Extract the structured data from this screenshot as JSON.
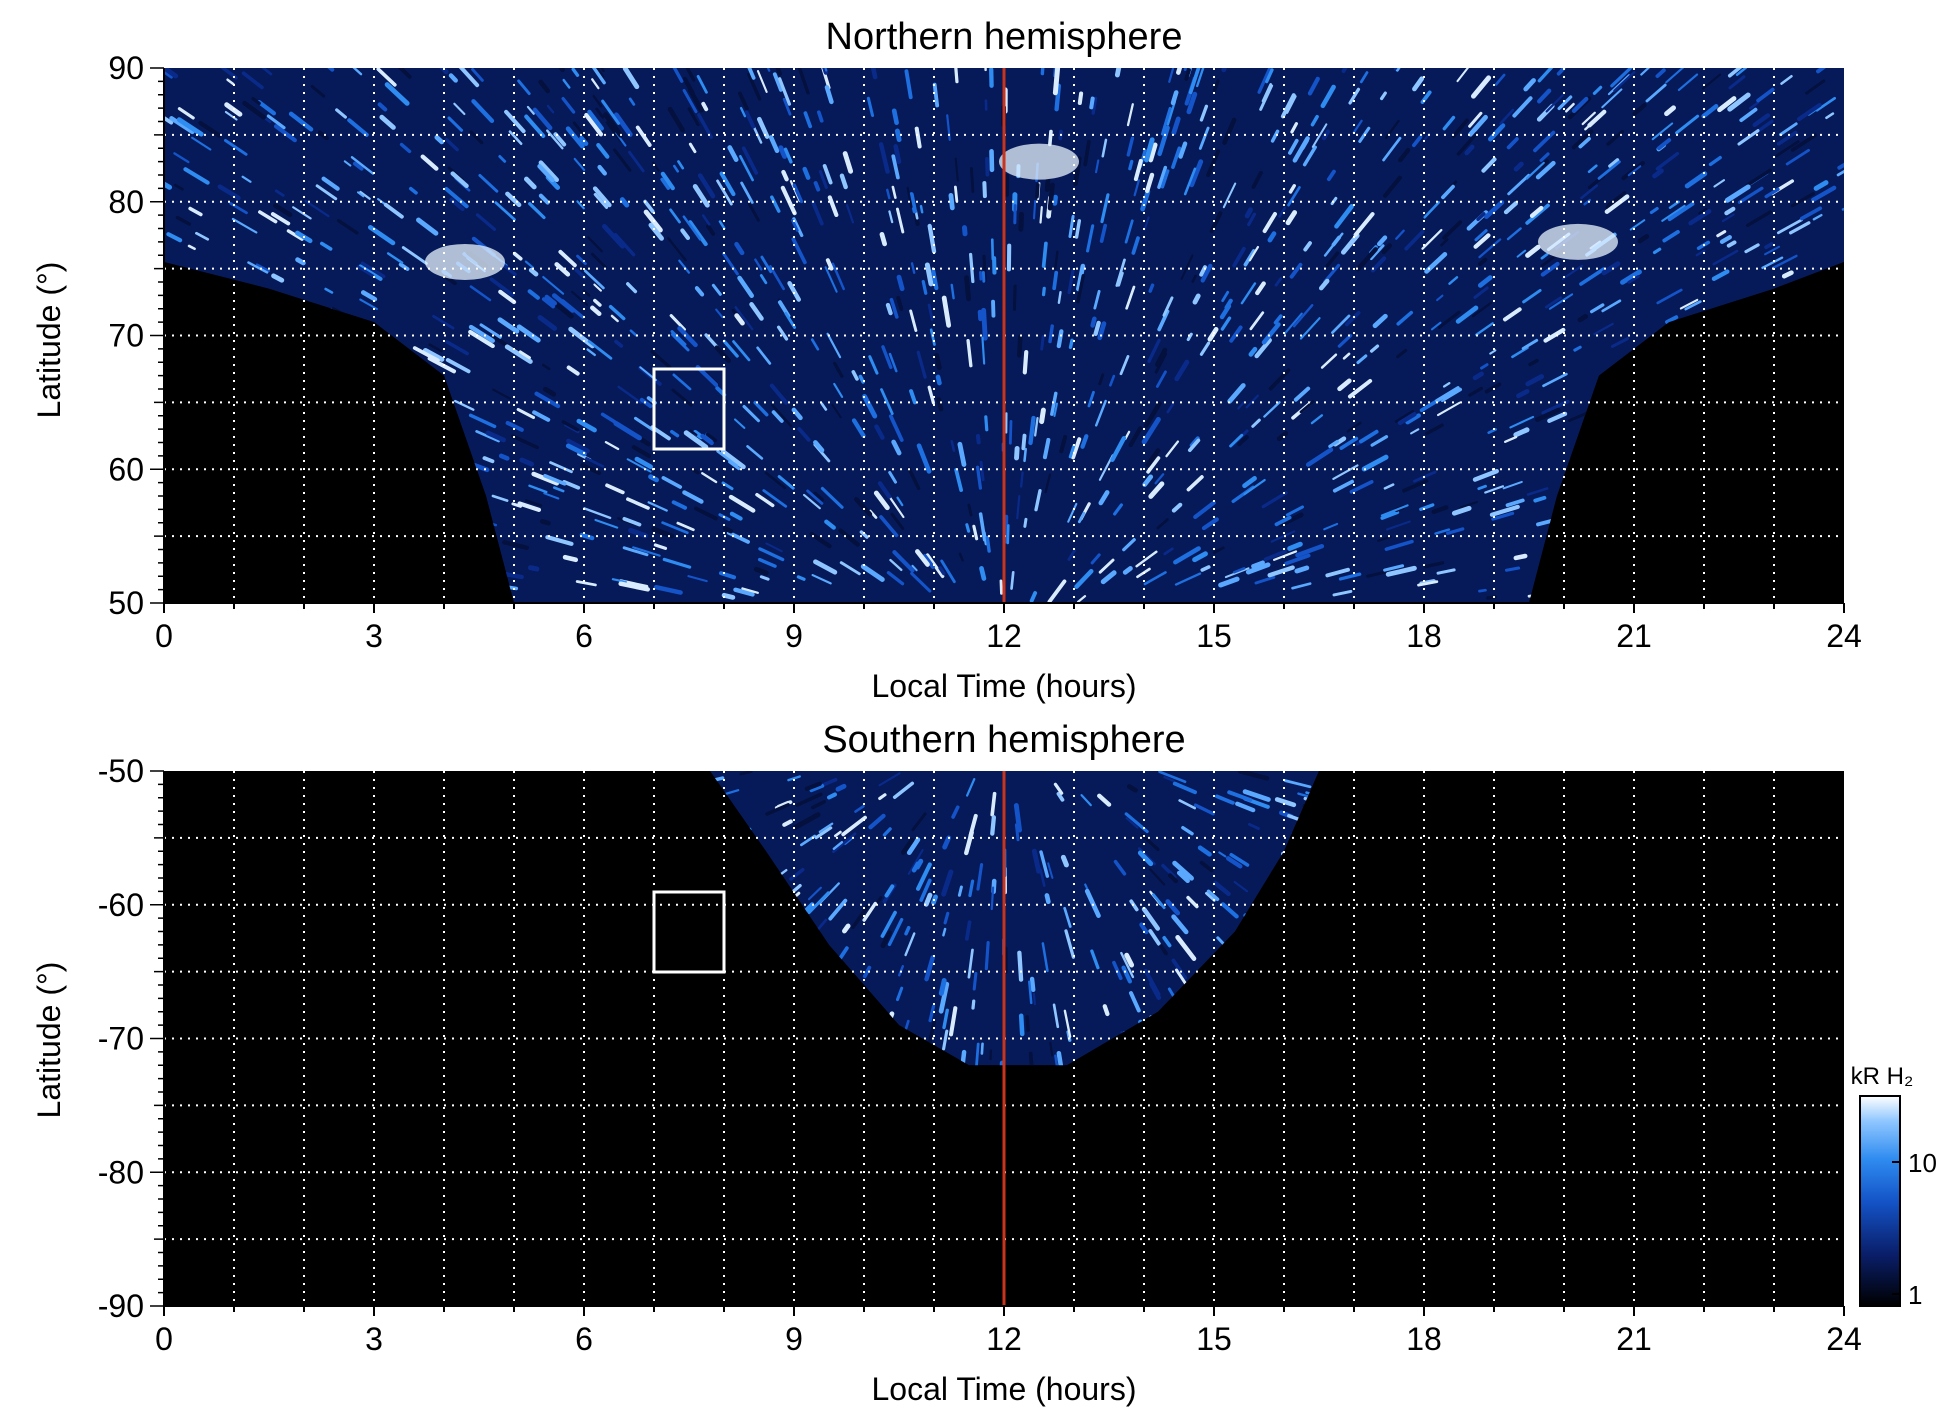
{
  "chart_data": [
    {
      "type": "heatmap",
      "title": "Northern hemisphere",
      "xlabel": "Local Time (hours)",
      "ylabel": "Latitude (°)",
      "xlim": [
        0,
        24
      ],
      "ylim": [
        50,
        90
      ],
      "xticks": [
        "0",
        "3",
        "6",
        "9",
        "12",
        "15",
        "18",
        "21",
        "24"
      ],
      "yticks": [
        "50",
        "60",
        "70",
        "80",
        "90"
      ],
      "grid": true,
      "noon_line_x": 12,
      "noon_line_color": "#c8341c",
      "box": {
        "x": [
          7,
          8
        ],
        "y": [
          61.5,
          67.5
        ]
      },
      "coverage": {
        "description_points_lt_lat": [
          [
            0,
            75.5
          ],
          [
            1.5,
            73.5
          ],
          [
            3,
            71
          ],
          [
            4,
            67
          ],
          [
            4.6,
            58
          ],
          [
            5,
            50
          ],
          [
            19.5,
            50
          ],
          [
            19.9,
            58
          ],
          [
            20.5,
            67
          ],
          [
            21.5,
            71
          ],
          [
            23,
            73.5
          ],
          [
            24,
            75.5
          ]
        ]
      },
      "features": [
        {
          "lt": 4.3,
          "lat": 75.5,
          "intensity": "bright"
        },
        {
          "lt": 12.5,
          "lat": 83,
          "intensity": "bright"
        },
        {
          "lt": 20.2,
          "lat": 77,
          "intensity": "bright"
        }
      ]
    },
    {
      "type": "heatmap",
      "title": "Southern hemisphere",
      "xlabel": "Local Time (hours)",
      "ylabel": "Latitude (°)",
      "xlim": [
        0,
        24
      ],
      "ylim": [
        -90,
        -50
      ],
      "xticks": [
        "0",
        "3",
        "6",
        "9",
        "12",
        "15",
        "18",
        "21",
        "24"
      ],
      "yticks": [
        "-90",
        "-80",
        "-70",
        "-60",
        "-50"
      ],
      "grid": true,
      "noon_line_x": 12,
      "noon_line_color": "#c8341c",
      "box": {
        "x": [
          7,
          8
        ],
        "y": [
          -65,
          -59
        ]
      },
      "coverage": {
        "description_points_lt_lat": [
          [
            7.8,
            -50
          ],
          [
            8.6,
            -56
          ],
          [
            9.5,
            -63
          ],
          [
            10.5,
            -69
          ],
          [
            11.5,
            -72
          ],
          [
            12.9,
            -72
          ],
          [
            14.2,
            -68
          ],
          [
            15.3,
            -62
          ],
          [
            16.0,
            -56
          ],
          [
            16.5,
            -50
          ]
        ]
      }
    }
  ],
  "colorbar": {
    "label": "kR H₂",
    "ticks": [
      "10",
      "1"
    ],
    "scale": "log",
    "colors": [
      "#000000",
      "#0a1f6b",
      "#1454c8",
      "#2f8cf0",
      "#8fc6ff",
      "#ffffff"
    ]
  }
}
